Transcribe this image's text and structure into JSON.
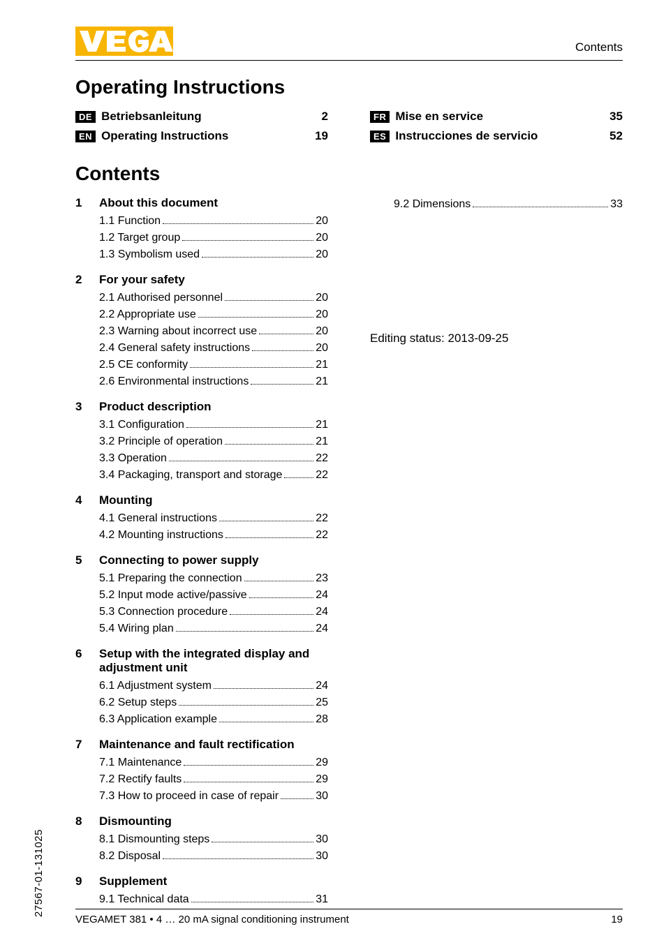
{
  "header": {
    "contents_label": "Contents"
  },
  "logo": {
    "text": "VEGA",
    "bg_color": "#f8b500",
    "text_color": "#ffffff"
  },
  "main_title": "Operating Instructions",
  "languages": [
    {
      "code": "DE",
      "title": "Betriebsanleitung",
      "page": "2"
    },
    {
      "code": "EN",
      "title": "Operating Instructions",
      "page": "19"
    },
    {
      "code": "FR",
      "title": "Mise en service",
      "page": "35"
    },
    {
      "code": "ES",
      "title": "Instrucciones de servicio",
      "page": "52"
    }
  ],
  "contents_title": "Contents",
  "toc": [
    {
      "num": "1",
      "title": "About this document",
      "entries": [
        {
          "label": "1.1 Function",
          "page": "20"
        },
        {
          "label": "1.2 Target group",
          "page": "20"
        },
        {
          "label": "1.3 Symbolism used",
          "page": "20"
        }
      ]
    },
    {
      "num": "2",
      "title": "For your safety",
      "entries": [
        {
          "label": "2.1 Authorised personnel",
          "page": "20"
        },
        {
          "label": "2.2 Appropriate use",
          "page": "20"
        },
        {
          "label": "2.3 Warning about incorrect use",
          "page": "20"
        },
        {
          "label": "2.4 General safety instructions",
          "page": "20"
        },
        {
          "label": "2.5 CE conformity",
          "page": "21"
        },
        {
          "label": "2.6 Environmental instructions",
          "page": "21"
        }
      ]
    },
    {
      "num": "3",
      "title": "Product description",
      "entries": [
        {
          "label": "3.1 Configuration",
          "page": "21"
        },
        {
          "label": "3.2 Principle of operation",
          "page": "21"
        },
        {
          "label": "3.3 Operation",
          "page": "22"
        },
        {
          "label": "3.4 Packaging, transport and storage",
          "page": "22"
        }
      ]
    },
    {
      "num": "4",
      "title": "Mounting",
      "entries": [
        {
          "label": "4.1 General instructions",
          "page": "22"
        },
        {
          "label": "4.2 Mounting instructions",
          "page": "22"
        }
      ]
    },
    {
      "num": "5",
      "title": "Connecting to power supply",
      "entries": [
        {
          "label": "5.1 Preparing the connection",
          "page": "23"
        },
        {
          "label": "5.2 Input mode active/passive",
          "page": "24"
        },
        {
          "label": "5.3 Connection procedure",
          "page": "24"
        },
        {
          "label": "5.4 Wiring plan",
          "page": "24"
        }
      ]
    },
    {
      "num": "6",
      "title": "Setup with the integrated display and adjustment unit",
      "entries": [
        {
          "label": "6.1 Adjustment system",
          "page": "24"
        },
        {
          "label": "6.2 Setup steps",
          "page": "25"
        },
        {
          "label": "6.3 Application example",
          "page": "28"
        }
      ]
    },
    {
      "num": "7",
      "title": "Maintenance and fault rectification",
      "entries": [
        {
          "label": "7.1 Maintenance",
          "page": "29"
        },
        {
          "label": "7.2 Rectify faults",
          "page": "29"
        },
        {
          "label": "7.3 How to proceed in case of repair",
          "page": "30"
        }
      ]
    },
    {
      "num": "8",
      "title": "Dismounting",
      "entries": [
        {
          "label": "8.1 Dismounting steps",
          "page": "30"
        },
        {
          "label": "8.2 Disposal",
          "page": "30"
        }
      ]
    },
    {
      "num": "9",
      "title": "Supplement",
      "entries": [
        {
          "label": "9.1 Technical data",
          "page": "31"
        }
      ]
    }
  ],
  "toc_right": [
    {
      "label": "9.2 Dimensions",
      "page": "33"
    }
  ],
  "editing_status": "Editing status: 2013-09-25",
  "footer": {
    "product": "VEGAMET 381 • 4 … 20 mA signal conditioning instrument",
    "page_number": "19"
  },
  "side_code": "27567-01-131025"
}
